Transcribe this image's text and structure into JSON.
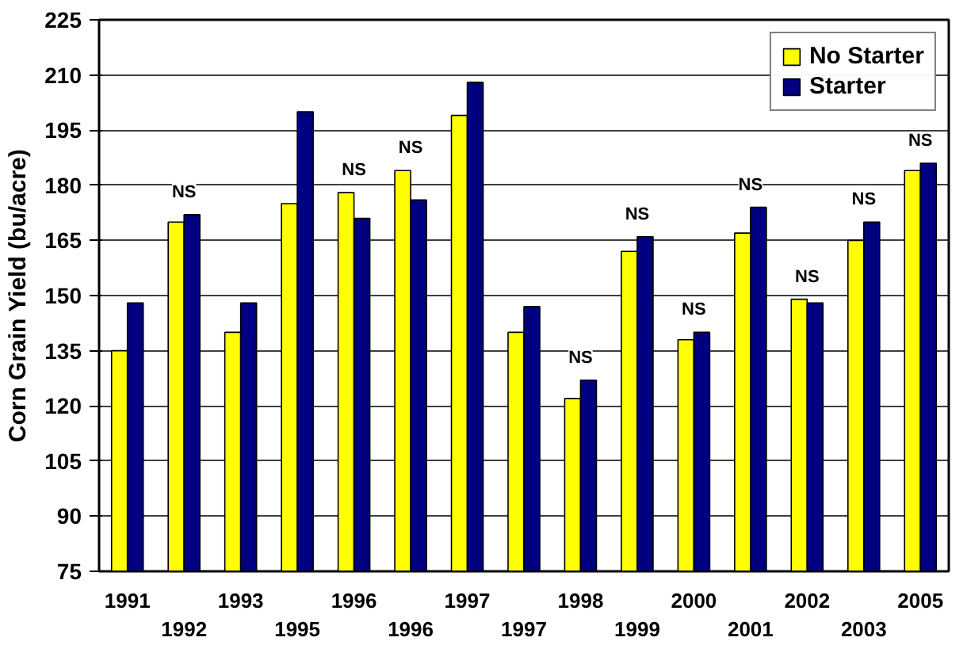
{
  "chart_data": {
    "type": "bar",
    "ylabel": "Corn Grain Yield (bu/acre)",
    "categories": [
      "1991",
      "1992",
      "1993",
      "1995",
      "1996",
      "1996",
      "1997",
      "1997",
      "1998",
      "1999",
      "2000",
      "2001",
      "2002",
      "2003",
      "2005"
    ],
    "series": [
      {
        "name": "No Starter",
        "color": "#ffff00",
        "values": [
          135,
          170,
          140,
          175,
          178,
          184,
          199,
          140,
          122,
          162,
          138,
          167,
          149,
          165,
          184
        ]
      },
      {
        "name": "Starter",
        "color": "#000080",
        "values": [
          148,
          172,
          148,
          200,
          171,
          176,
          208,
          147,
          127,
          166,
          140,
          174,
          148,
          170,
          186
        ]
      }
    ],
    "ylim": [
      75,
      225
    ],
    "yticks": [
      75,
      90,
      105,
      120,
      135,
      150,
      165,
      180,
      195,
      210,
      225
    ],
    "grid": "y",
    "legend": "top right",
    "annotations": [
      {
        "text": "NS",
        "x": "1992",
        "y": 172
      },
      {
        "text": "NS",
        "x": "1996",
        "y": 178
      },
      {
        "text": "NS",
        "x": "1996",
        "y": 184
      },
      {
        "text": "NS",
        "x": "1998",
        "y": 127
      },
      {
        "text": "NS",
        "x": "1999",
        "y": 166
      },
      {
        "text": "NS",
        "x": "2000",
        "y": 140
      },
      {
        "text": "NS",
        "x": "2001",
        "y": 174
      },
      {
        "text": "NS",
        "x": "2002",
        "y": 149
      },
      {
        "text": "NS",
        "x": "2003",
        "y": 170
      },
      {
        "text": "NS",
        "x": "2005",
        "y": 186
      }
    ]
  }
}
